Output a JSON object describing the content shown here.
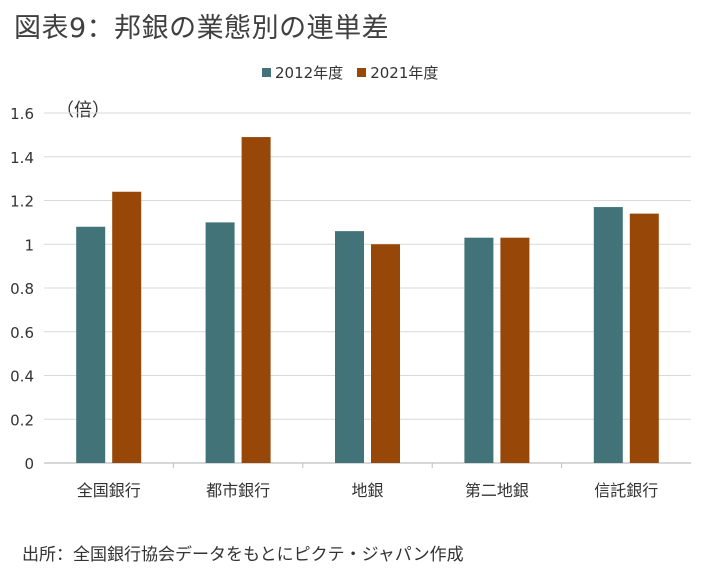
{
  "title": "図表9：邦銀の業態別の連単差",
  "unit_label": "（倍）",
  "source": "出所：全国銀行協会データをもとにピクテ・ジャパン作成",
  "colors": {
    "series_2012": "#417379",
    "series_2021": "#974808",
    "grid": "#d9d9d9",
    "axis": "#bfbfbf",
    "text": "#333333"
  },
  "chart_data": {
    "type": "bar",
    "title": "図表9：邦銀の業態別の連単差",
    "ylabel": "（倍）",
    "xlabel": "",
    "ylim": [
      0,
      1.6
    ],
    "yticks": [
      "0",
      "0.2",
      "0.4",
      "0.6",
      "0.8",
      "1",
      "1.2",
      "1.4",
      "1.6"
    ],
    "yticks_values": [
      0,
      0.2,
      0.4,
      0.6,
      0.8,
      1.0,
      1.2,
      1.4,
      1.6
    ],
    "grid": true,
    "legend": "top-center",
    "categories": [
      "全国銀行",
      "都市銀行",
      "地銀",
      "第二地銀",
      "信託銀行"
    ],
    "series": [
      {
        "name": "2012年度",
        "values": [
          1.08,
          1.1,
          1.06,
          1.03,
          1.17
        ]
      },
      {
        "name": "2021年度",
        "values": [
          1.24,
          1.49,
          1.0,
          1.03,
          1.14
        ]
      }
    ]
  }
}
